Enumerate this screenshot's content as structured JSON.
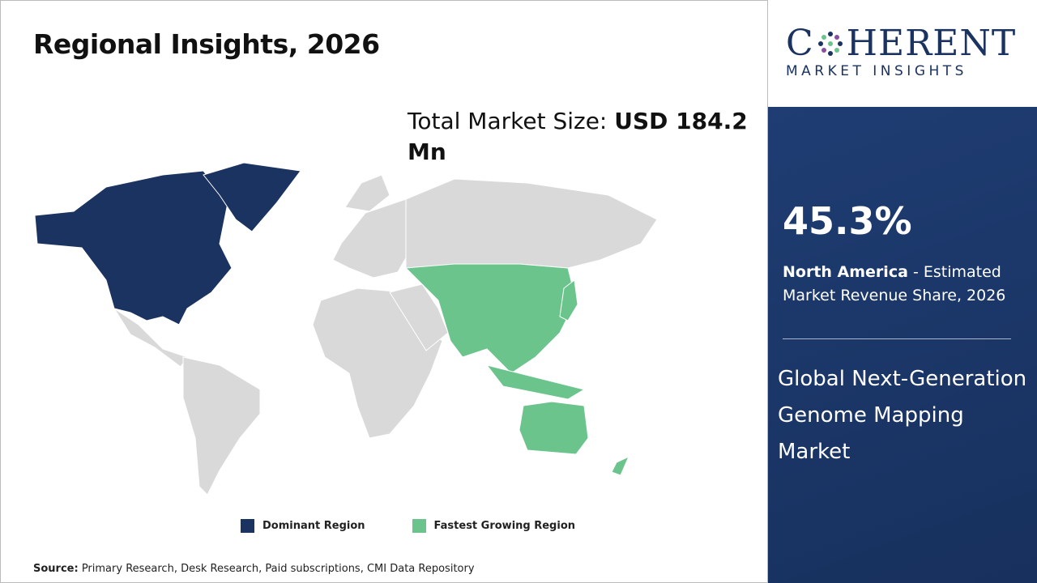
{
  "header": {
    "title": "Regional Insights, 2026"
  },
  "market_size": {
    "label": "Total Market Size: ",
    "value": "USD 184.2 Mn"
  },
  "logo": {
    "name_start": "C",
    "name_end": "HERENT",
    "tagline": "MARKET INSIGHTS"
  },
  "highlight": {
    "share": "45.3%",
    "region": "North America",
    "description": " - Estimated Market Revenue Share, 2026"
  },
  "market_title": "Global Next-Generation Genome Mapping Market",
  "legend": [
    {
      "label": "Dominant Region",
      "color": "#1b3360"
    },
    {
      "label": "Fastest Growing Region",
      "color": "#6cc48d"
    }
  ],
  "source": {
    "label": "Source:",
    "text": " Primary Research, Desk Research, Paid subscriptions, CMI Data Repository"
  }
}
